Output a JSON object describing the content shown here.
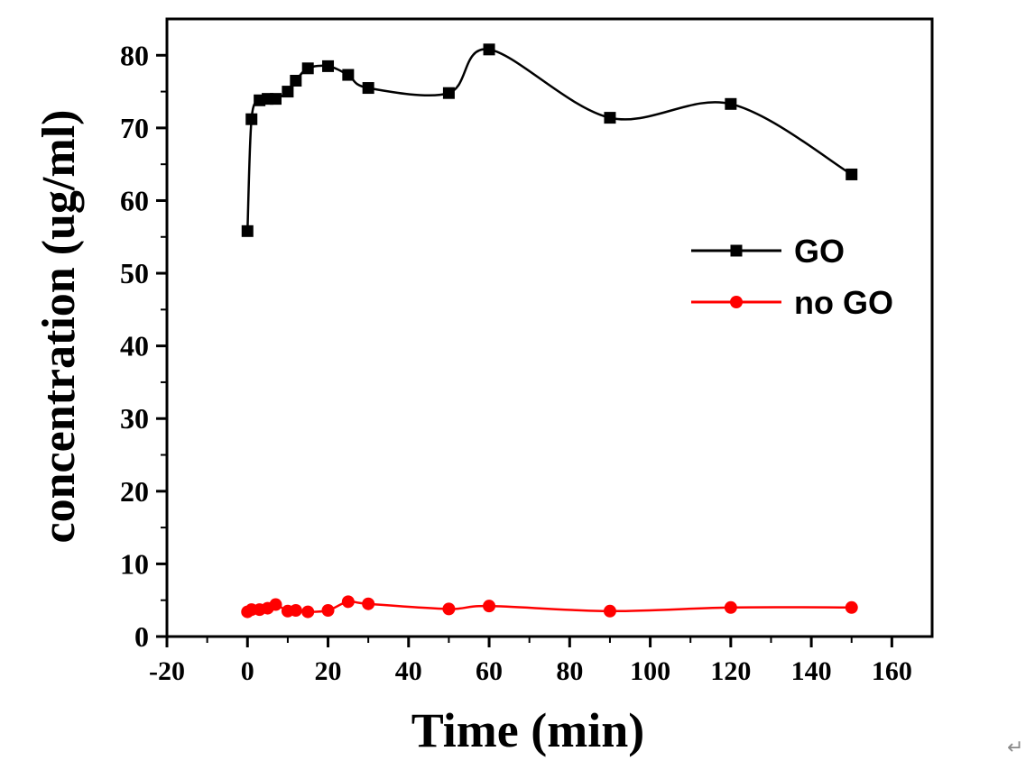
{
  "chart_data": {
    "type": "line",
    "xlabel": "Time (min)",
    "ylabel": "concentration (ug/ml)",
    "xlim": [
      -20,
      170
    ],
    "ylim": [
      0,
      85
    ],
    "x_ticks": [
      -20,
      0,
      20,
      40,
      60,
      80,
      100,
      120,
      140,
      160
    ],
    "y_ticks": [
      0,
      10,
      20,
      30,
      40,
      50,
      60,
      70,
      80
    ],
    "x_tick_labels": [
      "-20",
      "0",
      "20",
      "40",
      "60",
      "80",
      "100",
      "120",
      "140",
      "160"
    ],
    "y_tick_labels": [
      "0",
      "10",
      "20",
      "30",
      "40",
      "50",
      "60",
      "70",
      "80"
    ],
    "legend_position": "right",
    "grid": false,
    "smooth": true,
    "series": [
      {
        "name": "GO",
        "color": "#000000",
        "marker": "square",
        "x": [
          0,
          1,
          3,
          5,
          7,
          10,
          12,
          15,
          20,
          25,
          30,
          50,
          60,
          90,
          120,
          150
        ],
        "y": [
          55.8,
          71.2,
          73.8,
          74.0,
          74.0,
          75.0,
          76.5,
          78.2,
          78.5,
          77.3,
          75.5,
          74.8,
          80.8,
          71.4,
          73.3,
          63.6
        ]
      },
      {
        "name": "no GO",
        "color": "#ff0000",
        "marker": "circle",
        "x": [
          0,
          1,
          3,
          5,
          7,
          10,
          12,
          15,
          20,
          25,
          30,
          50,
          60,
          90,
          120,
          150
        ],
        "y": [
          3.4,
          3.7,
          3.7,
          3.9,
          4.4,
          3.5,
          3.6,
          3.4,
          3.6,
          4.8,
          4.5,
          3.8,
          4.2,
          3.5,
          4.0,
          4.0
        ]
      }
    ]
  },
  "page": {
    "corner_mark": "↵"
  }
}
